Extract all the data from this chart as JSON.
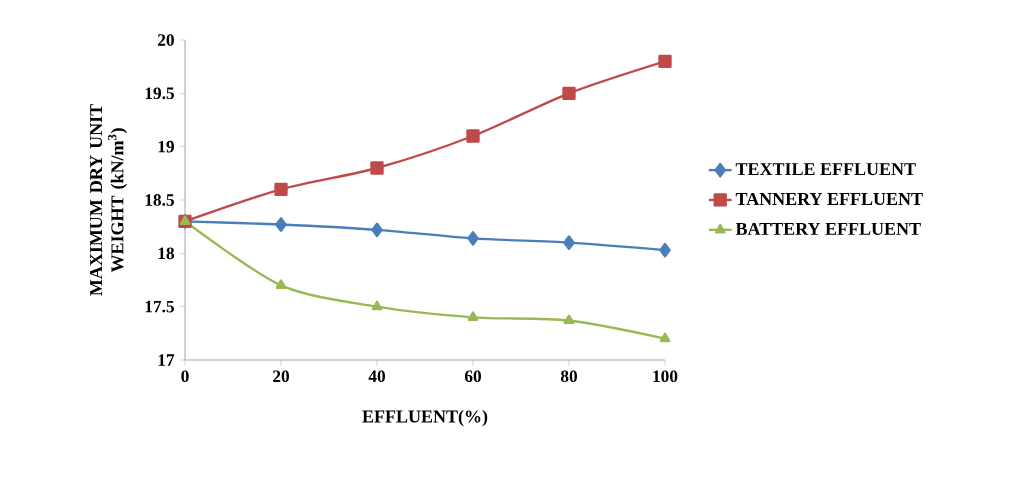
{
  "chart_data": {
    "type": "line",
    "xlabel": "EFFLUENT(%)",
    "ylabel": "MAXIMUM DRY UNIT WEIGHT (kN/m$^{3}$)",
    "x": [
      0,
      20,
      40,
      60,
      80,
      100
    ],
    "series": [
      {
        "name": "TEXTILE EFFLUENT",
        "color": "#4a7ebb",
        "marker": "diamond",
        "values": [
          18.3,
          18.27,
          18.22,
          18.14,
          18.1,
          18.03
        ]
      },
      {
        "name": "TANNERY EFFLUENT",
        "color": "#be4b48",
        "marker": "square",
        "values": [
          18.3,
          18.6,
          18.8,
          19.1,
          19.5,
          19.8
        ]
      },
      {
        "name": "BATTERY EFFLUENT",
        "color": "#98b954",
        "marker": "triangle",
        "values": [
          18.3,
          17.7,
          17.5,
          17.4,
          17.37,
          17.2
        ]
      }
    ],
    "xlim": [
      0,
      100
    ],
    "xticks": [
      0,
      20,
      40,
      60,
      80,
      100
    ],
    "ylim": [
      17,
      20
    ],
    "yticks": [
      17,
      17.5,
      18,
      18.5,
      19,
      19.5,
      20
    ],
    "grid": false,
    "legend": "right",
    "line_style": "solid"
  }
}
